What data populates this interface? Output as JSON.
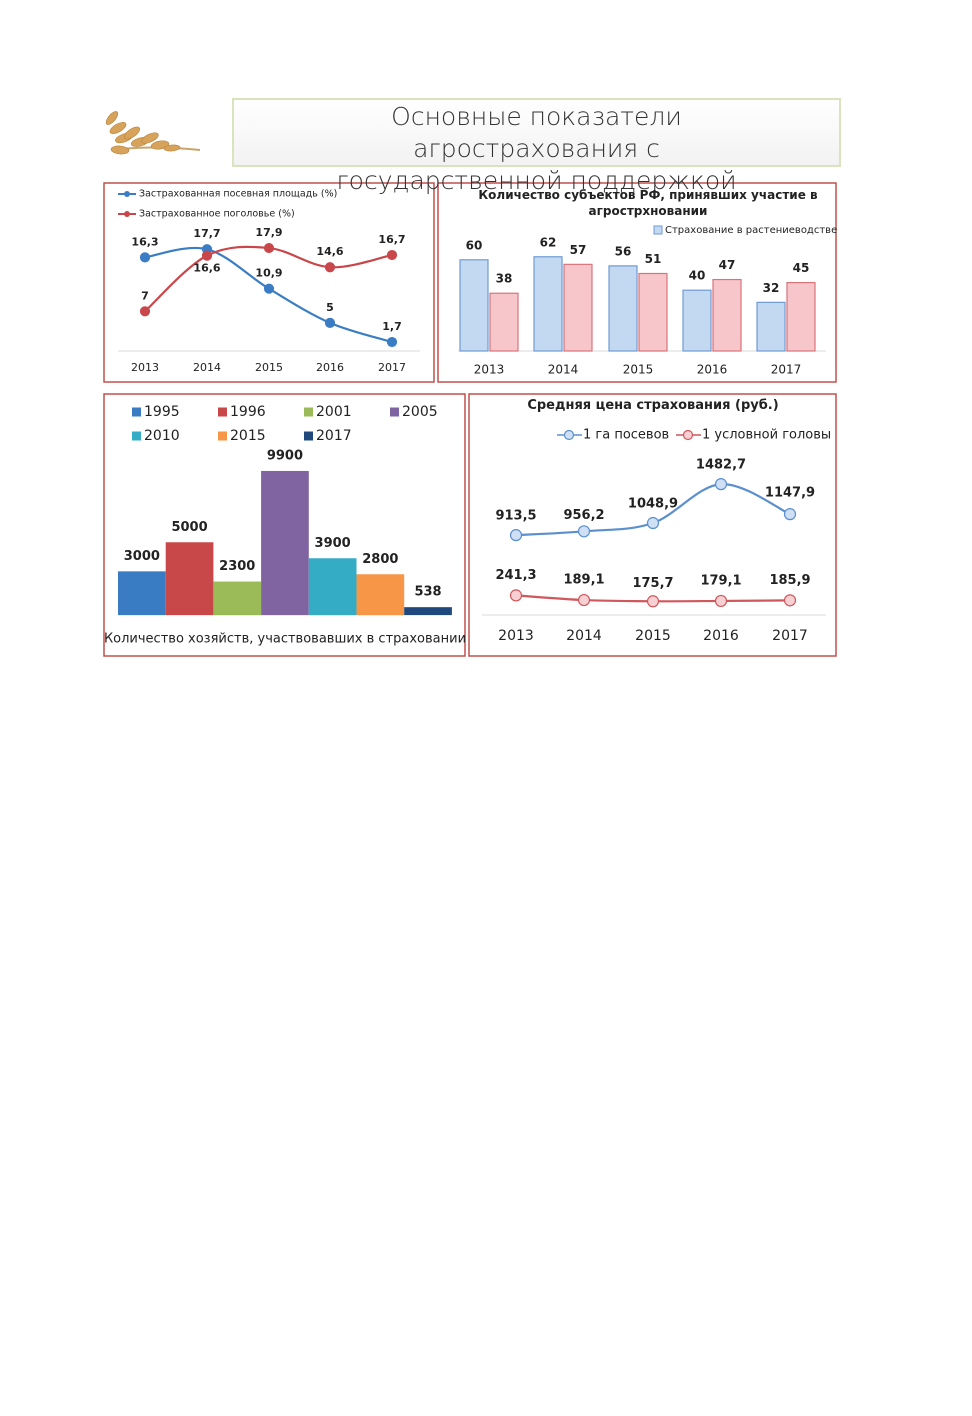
{
  "header": {
    "title": "Основные показатели агрострахования с государственной поддержкой"
  },
  "chart_data": [
    {
      "type": "line",
      "categories": [
        "2013",
        "2014",
        "2015",
        "2016",
        "2017"
      ],
      "series": [
        {
          "name": "Застрахованная посевная площадь (%)",
          "color": "#3b7dc4",
          "values": [
            16.3,
            17.7,
            10.9,
            5,
            1.7
          ],
          "value_labels": [
            "16,3",
            "17,7",
            "10,9",
            "5",
            "1,7"
          ]
        },
        {
          "name": "Застрахованное поголовье (%)",
          "color": "#c9474a",
          "values": [
            7,
            16.6,
            17.9,
            14.6,
            16.7
          ],
          "value_labels": [
            "7",
            "16,6",
            "17,9",
            "14,6",
            "16,7"
          ]
        }
      ]
    },
    {
      "type": "bar",
      "title": "Количество субъектов РФ, принявших участие в агрострхновании",
      "categories": [
        "2013",
        "2014",
        "2015",
        "2016",
        "2017"
      ],
      "series": [
        {
          "name": "Страхование в растениеводстве",
          "color": "#c3d8f1",
          "values": [
            60,
            62,
            56,
            40,
            32
          ]
        },
        {
          "color": "#f7c6cb",
          "values": [
            38,
            57,
            51,
            47,
            45
          ]
        }
      ]
    },
    {
      "type": "bar",
      "categories": [
        "1995",
        "1996",
        "2001",
        "2005",
        "2010",
        "2015",
        "2017"
      ],
      "values": [
        3000,
        5000,
        2300,
        9900,
        3900,
        2800,
        538
      ],
      "colors": [
        "#3a7cc4",
        "#c8484a",
        "#9bbb59",
        "#8064a2",
        "#34acc6",
        "#f79646",
        "#1f497d"
      ],
      "xlabel": "Количество хозяйств, участвовавших в страховании"
    },
    {
      "type": "line",
      "title": "Средняя цена страхования (руб.)",
      "categories": [
        "2013",
        "2014",
        "2015",
        "2016",
        "2017"
      ],
      "series": [
        {
          "name": "1 га посевов",
          "color": "#5b8fd0",
          "values": [
            913.5,
            956.2,
            1048.9,
            1482.7,
            1147.9
          ],
          "value_labels": [
            "913,5",
            "956,2",
            "1048,9",
            "1482,7",
            "1147,9"
          ]
        },
        {
          "name": "1 условной головы",
          "color": "#d0575c",
          "values": [
            241.3,
            189.1,
            175.7,
            179.1,
            185.9
          ],
          "value_labels": [
            "241,3",
            "189,1",
            "175,7",
            "179,1",
            "185,9"
          ]
        }
      ]
    }
  ]
}
